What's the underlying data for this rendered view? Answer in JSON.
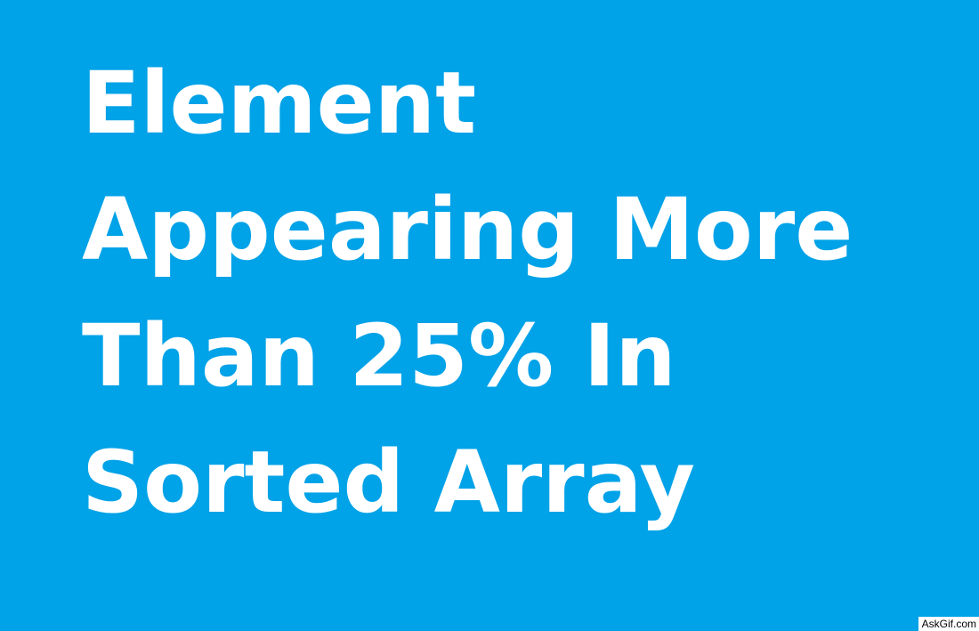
{
  "background_color": "#00a2e8",
  "text_color": "#ffffff",
  "title": {
    "lines": [
      "Element",
      "Appearing More",
      "Than 25% In",
      "Sorted Array"
    ]
  },
  "watermark": {
    "text": "AskGif.com"
  }
}
